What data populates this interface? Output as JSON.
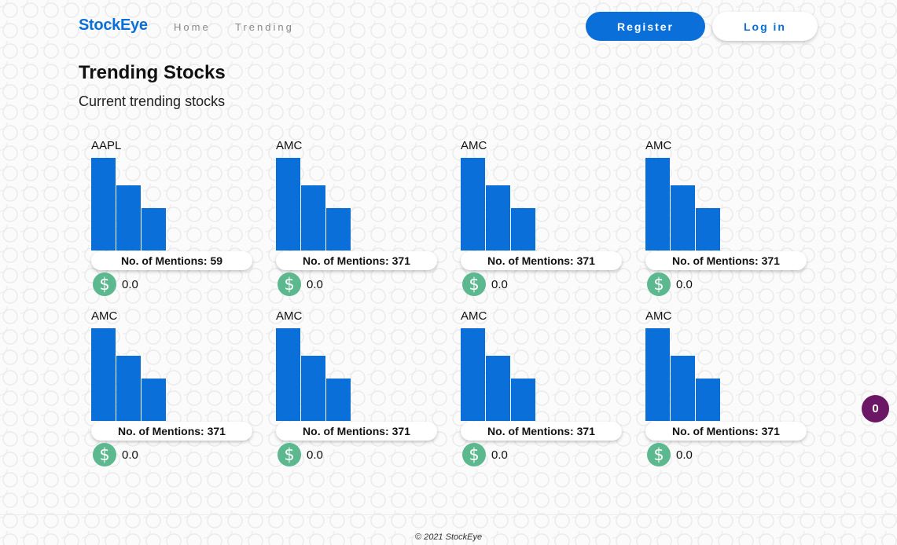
{
  "header": {
    "brand": "StockEye",
    "nav": [
      "Home",
      "Trending"
    ],
    "register_label": "Register",
    "login_label": "Log in",
    "brand_color": "#0a6fd8"
  },
  "main": {
    "title": "Trending Stocks",
    "subtitle": "Current trending stocks"
  },
  "stocks": [
    {
      "ticker": "AAPL",
      "mentions_label": "No. of Mentions: 59",
      "price": "0.0",
      "bar_levels": [
        1.0,
        0.7,
        0.46
      ]
    },
    {
      "ticker": "AMC",
      "mentions_label": "No. of Mentions: 371",
      "price": "0.0",
      "bar_levels": [
        1.0,
        0.7,
        0.46
      ]
    },
    {
      "ticker": "AMC",
      "mentions_label": "No. of Mentions: 371",
      "price": "0.0",
      "bar_levels": [
        1.0,
        0.7,
        0.46
      ]
    },
    {
      "ticker": "AMC",
      "mentions_label": "No. of Mentions: 371",
      "price": "0.0",
      "bar_levels": [
        1.0,
        0.7,
        0.46
      ]
    },
    {
      "ticker": "AMC",
      "mentions_label": "No. of Mentions: 371",
      "price": "0.0",
      "bar_levels": [
        1.0,
        0.7,
        0.46
      ]
    },
    {
      "ticker": "AMC",
      "mentions_label": "No. of Mentions: 371",
      "price": "0.0",
      "bar_levels": [
        1.0,
        0.7,
        0.46
      ]
    },
    {
      "ticker": "AMC",
      "mentions_label": "No. of Mentions: 371",
      "price": "0.0",
      "bar_levels": [
        1.0,
        0.7,
        0.46
      ]
    },
    {
      "ticker": "AMC",
      "mentions_label": "No. of Mentions: 371",
      "price": "0.0",
      "bar_levels": [
        1.0,
        0.7,
        0.46
      ]
    }
  ],
  "icons": {
    "price_icon": "dollar-icon",
    "price_glyph": "$",
    "price_icon_color": "#5cb88e"
  },
  "counter": {
    "value": "0",
    "color": "#6b1766"
  },
  "footer": {
    "text": "© 2021 StockEye"
  }
}
